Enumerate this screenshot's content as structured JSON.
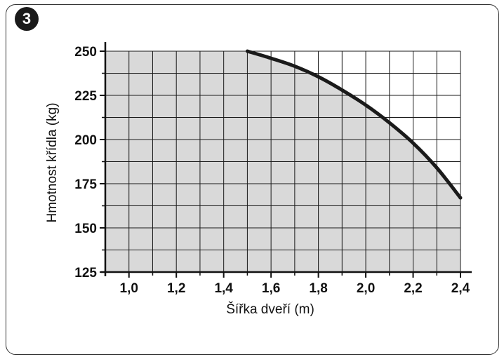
{
  "figure_number": "3",
  "colors": {
    "shaded": "#d9d9d9",
    "grid": "#1a1a1a",
    "curve": "#1a1a1a"
  },
  "chart_data": {
    "type": "line",
    "title": "",
    "xlabel": "Šířka dveří (m)",
    "ylabel": "Hmotnost křídla (kg)",
    "xlim": [
      0.9,
      2.4
    ],
    "ylim": [
      125,
      250
    ],
    "x_ticks": [
      "1,0",
      "1,2",
      "1,4",
      "1,6",
      "1,8",
      "2,0",
      "2,2",
      "2,4"
    ],
    "y_ticks": [
      "125",
      "150",
      "175",
      "200",
      "225",
      "250"
    ],
    "grid": true,
    "shaded_region": "area below the curve (and below 250 kg for widths up to 1,5 m)",
    "series": [
      {
        "x": [
          1.5,
          1.6,
          1.7,
          1.8,
          1.9,
          2.0,
          2.1,
          2.2,
          2.3,
          2.4
        ],
        "y": [
          250,
          246,
          241.5,
          235.5,
          228,
          219.5,
          209.5,
          198,
          184,
          167
        ]
      }
    ]
  }
}
